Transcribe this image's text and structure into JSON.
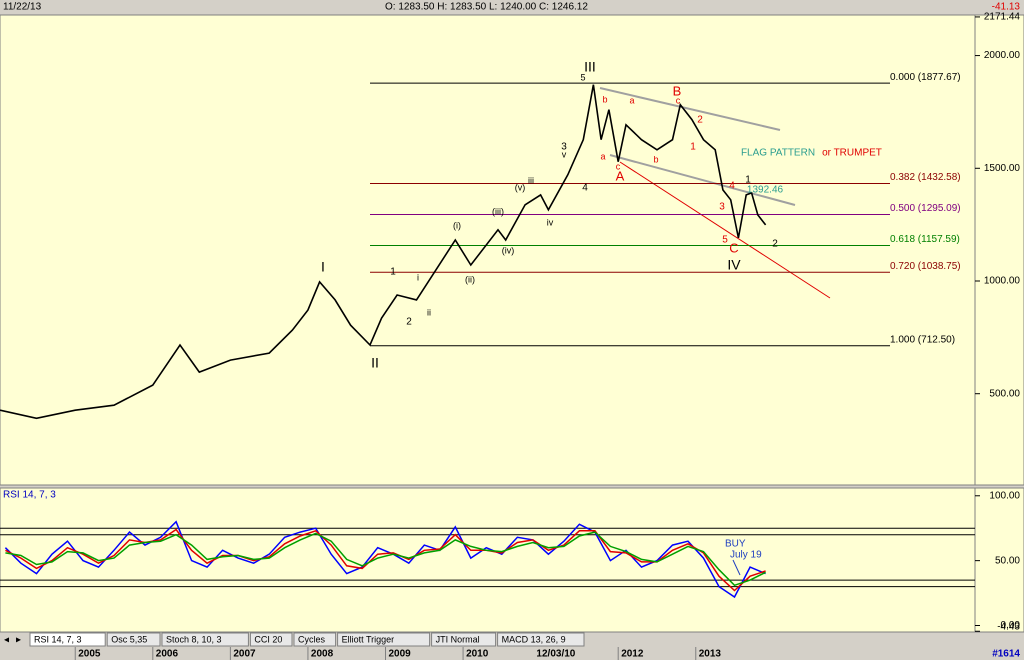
{
  "header": {
    "date": "11/22/13",
    "ohlc": "O: 1283.50   H: 1283.50   L: 1240.00   C: 1246.12",
    "change": "-41.13"
  },
  "chart_data": {
    "type": "line",
    "xlim": [
      2004.03,
      2016.6
    ],
    "xticks": [
      2005,
      2006,
      2007,
      2008,
      2009,
      2010,
      2011,
      2012,
      2013
    ],
    "cursor": {
      "x": 2010.92,
      "label": "12/03/10"
    },
    "ylim": [
      95,
      2180
    ],
    "yticks": [
      {
        "value": 500,
        "label": "500.00"
      },
      {
        "value": 1000,
        "label": "1000.00"
      },
      {
        "value": 1500,
        "label": "1500.00"
      },
      {
        "value": 2000,
        "label": "2000.00"
      },
      {
        "value": 2171.44,
        "label": "2171.44"
      }
    ],
    "x": [
      2004.03,
      2004.5,
      2005.0,
      2005.5,
      2006.0,
      2006.35,
      2006.6,
      2007.0,
      2007.5,
      2007.8,
      2008.0,
      2008.15,
      2008.35,
      2008.55,
      2008.8,
      2008.95,
      2009.15,
      2009.4,
      2009.9,
      2010.1,
      2010.45,
      2010.55,
      2010.8,
      2011.0,
      2011.1,
      2011.35,
      2011.55,
      2011.68,
      2011.78,
      2011.88,
      2012.0,
      2012.1,
      2012.3,
      2012.5,
      2012.7,
      2012.8,
      2012.95,
      2013.1,
      2013.25,
      2013.35,
      2013.45,
      2013.55,
      2013.65,
      2013.72,
      2013.8,
      2013.9
    ],
    "series": [
      {
        "color": "#000000",
        "values": [
          427,
          391,
          427,
          449,
          538,
          716,
          596,
          649,
          680,
          782,
          871,
          996,
          916,
          804,
          716,
          836,
          938,
          916,
          1182,
          1071,
          1227,
          1182,
          1338,
          1382,
          1316,
          1471,
          1627,
          1871,
          1627,
          1760,
          1529,
          1693,
          1627,
          1582,
          1627,
          1782,
          1716,
          1627,
          1582,
          1404,
          1360,
          1191,
          1382,
          1391,
          1293,
          1249
        ]
      }
    ],
    "levels": [
      {
        "value": 1877.67,
        "label": "0.000 (1877.67)",
        "color": "#000000"
      },
      {
        "value": 1432.58,
        "label": "0.382 (1432.58)",
        "color": "#8b0000"
      },
      {
        "value": 1295.09,
        "label": "0.500 (1295.09)",
        "color": "#800080"
      },
      {
        "value": 1157.59,
        "label": "0.618 (1157.59)",
        "color": "#008000"
      },
      {
        "value": 1038.75,
        "label": "0.720 (1038.75)",
        "color": "#8b0000"
      },
      {
        "value": 712.5,
        "label": "1.000 (712.50)",
        "color": "#000000"
      }
    ],
    "annotations": [
      {
        "text": "III",
        "color": "#000000"
      },
      {
        "text": "5",
        "color": "#000000"
      },
      {
        "text": "B",
        "color": "#e00000"
      },
      {
        "text": "c",
        "color": "#e00000"
      },
      {
        "text": "a",
        "color": "#e00000"
      },
      {
        "text": "b",
        "color": "#e00000"
      },
      {
        "text": "2",
        "color": "#e00000"
      },
      {
        "text": "1",
        "color": "#e00000"
      },
      {
        "text": "b",
        "color": "#e00000"
      },
      {
        "text": "a",
        "color": "#e00000"
      },
      {
        "text": "c",
        "color": "#e00000"
      },
      {
        "text": "A",
        "color": "#e00000"
      },
      {
        "text": "3",
        "color": "#000000"
      },
      {
        "text": "v",
        "color": "#000000"
      },
      {
        "text": "4",
        "color": "#000000"
      },
      {
        "text": "iii",
        "color": "#000000"
      },
      {
        "text": "(v)",
        "color": "#000000"
      },
      {
        "text": "iv",
        "color": "#000000"
      },
      {
        "text": "(iii)",
        "color": "#000000"
      },
      {
        "text": "(i)",
        "color": "#000000"
      },
      {
        "text": "(iv)",
        "color": "#000000"
      },
      {
        "text": "(ii)",
        "color": "#000000"
      },
      {
        "text": "1",
        "color": "#000000"
      },
      {
        "text": "i",
        "color": "#000000"
      },
      {
        "text": "2",
        "color": "#000000"
      },
      {
        "text": "ii",
        "color": "#000000"
      },
      {
        "text": "I",
        "color": "#000000"
      },
      {
        "text": "II",
        "color": "#000000"
      },
      {
        "text": "4",
        "color": "#e00000"
      },
      {
        "text": "1",
        "color": "#000000"
      },
      {
        "text": "3",
        "color": "#e00000"
      },
      {
        "text": "5",
        "color": "#e00000"
      },
      {
        "text": "C",
        "color": "#e00000"
      },
      {
        "text": "2",
        "color": "#000000"
      },
      {
        "text": "IV",
        "color": "#000000"
      },
      {
        "text": "1392.46",
        "color": "#2a9d8f"
      },
      {
        "text": "FLAG PATTERN",
        "color": "#2a9d8f"
      },
      {
        "text": "or TRUMPET",
        "color": "#e00000"
      },
      {
        "text": "BUY",
        "color": "#2040c0"
      },
      {
        "text": "July 19",
        "color": "#2040c0"
      }
    ],
    "rsi": {
      "title": "RSI 14, 7, 3",
      "ylim": [
        -5,
        106
      ],
      "yticks": [
        {
          "value": 100,
          "label": "100.00"
        },
        {
          "value": 50,
          "label": "50.00"
        },
        {
          "value": 0,
          "label": "0.00"
        },
        {
          "value": -4.43,
          "label": "-4.43"
        }
      ],
      "levels": [
        75,
        70,
        35,
        30
      ],
      "x": [
        2004.1,
        2004.3,
        2004.5,
        2004.7,
        2004.9,
        2005.1,
        2005.3,
        2005.5,
        2005.7,
        2005.9,
        2006.1,
        2006.3,
        2006.5,
        2006.7,
        2006.9,
        2007.1,
        2007.3,
        2007.5,
        2007.7,
        2007.9,
        2008.1,
        2008.3,
        2008.5,
        2008.7,
        2008.9,
        2009.1,
        2009.3,
        2009.5,
        2009.7,
        2009.9,
        2010.1,
        2010.3,
        2010.5,
        2010.7,
        2010.9,
        2011.1,
        2011.3,
        2011.5,
        2011.7,
        2011.9,
        2012.1,
        2012.3,
        2012.5,
        2012.7,
        2012.9,
        2013.1,
        2013.3,
        2013.5,
        2013.7,
        2013.9
      ],
      "series": [
        {
          "color": "#0000ff",
          "values": [
            60,
            48,
            40,
            55,
            65,
            50,
            45,
            58,
            72,
            62,
            68,
            80,
            50,
            45,
            58,
            52,
            48,
            55,
            68,
            72,
            75,
            55,
            40,
            45,
            60,
            55,
            48,
            62,
            58,
            76,
            52,
            60,
            55,
            68,
            66,
            55,
            65,
            78,
            72,
            50,
            58,
            45,
            50,
            62,
            65,
            52,
            30,
            22,
            45,
            40
          ]
        },
        {
          "color": "#e00000",
          "values": [
            58,
            52,
            44,
            50,
            60,
            55,
            48,
            54,
            66,
            64,
            66,
            74,
            58,
            48,
            54,
            54,
            50,
            53,
            63,
            69,
            73,
            62,
            46,
            44,
            55,
            56,
            51,
            58,
            59,
            70,
            58,
            58,
            56,
            64,
            66,
            58,
            62,
            73,
            73,
            57,
            56,
            49,
            49,
            58,
            63,
            56,
            38,
            27,
            38,
            42
          ]
        },
        {
          "color": "#00a000",
          "values": [
            56,
            54,
            47,
            49,
            57,
            56,
            50,
            52,
            62,
            64,
            65,
            70,
            62,
            51,
            53,
            54,
            51,
            52,
            60,
            66,
            71,
            65,
            51,
            46,
            52,
            55,
            52,
            56,
            58,
            66,
            61,
            58,
            57,
            61,
            64,
            60,
            61,
            69,
            72,
            61,
            57,
            51,
            49,
            55,
            61,
            57,
            43,
            31,
            35,
            41
          ]
        }
      ]
    },
    "tabs": [
      "RSI 14, 7, 3",
      "Osc 5,35",
      "Stoch 8, 10, 3",
      "CCI 20",
      "Cycles",
      "Elliott Trigger",
      "JTI Normal",
      "MACD 13, 26, 9"
    ],
    "footer": "#1614"
  }
}
